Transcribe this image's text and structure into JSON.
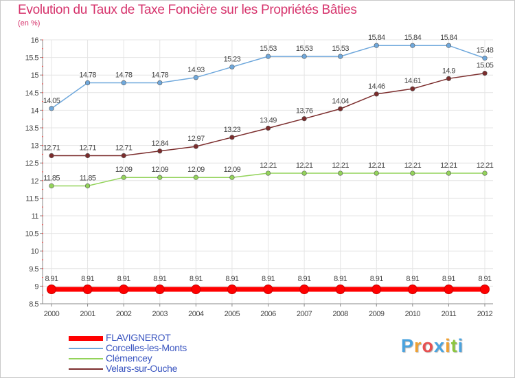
{
  "title": "Evolution du Taux de Taxe Foncière sur les Propriétés Bâties",
  "unit": "(en %)",
  "brand": {
    "text": "Proxiti",
    "colors": [
      "#4aa3df",
      "#f0a030",
      "#e85050",
      "#4aa3df",
      "#f0a030",
      "#8cc63f",
      "#4aa3df"
    ]
  },
  "chart_data": {
    "type": "line",
    "title": "Evolution du Taux de Taxe Foncière sur les Propriétés Bâties",
    "ylabel": "(en %)",
    "xlabel": "",
    "ylim": [
      8.5,
      16
    ],
    "yticks": [
      "8.5",
      "9",
      "9.5",
      "10",
      "10.5",
      "11",
      "11.5",
      "12",
      "12.5",
      "13",
      "13.5",
      "14",
      "14.5",
      "15",
      "15.5",
      "16"
    ],
    "categories": [
      "2000",
      "2001",
      "2002",
      "2003",
      "2004",
      "2005",
      "2006",
      "2007",
      "2008",
      "2009",
      "2010",
      "2011",
      "2012"
    ],
    "legend_position": "bottom-left",
    "series": [
      {
        "name": "FLAVIGNEROT",
        "color": "#ff0000",
        "values": [
          8.91,
          8.91,
          8.91,
          8.91,
          8.91,
          8.91,
          8.91,
          8.91,
          8.91,
          8.91,
          8.91,
          8.91,
          8.91
        ],
        "labels": [
          "8.91",
          "8.91",
          "8.91",
          "8.91",
          "8.91",
          "8.91",
          "8.91",
          "8.91",
          "8.91",
          "8.91",
          "8.91",
          "8.91",
          "8.91"
        ]
      },
      {
        "name": "Corcelles-les-Monts",
        "color": "#6fa8dc",
        "values": [
          14.05,
          14.78,
          14.78,
          14.78,
          14.93,
          15.23,
          15.53,
          15.53,
          15.53,
          15.84,
          15.84,
          15.84,
          15.48
        ],
        "labels": [
          "14.05",
          "14.78",
          "14.78",
          "14.78",
          "14.93",
          "15.23",
          "15.53",
          "15.53",
          "15.53",
          "15.84",
          "15.84",
          "15.84",
          "15.48"
        ]
      },
      {
        "name": "Clémencey",
        "color": "#93d35a",
        "values": [
          11.85,
          11.85,
          12.09,
          12.09,
          12.09,
          12.09,
          12.21,
          12.21,
          12.21,
          12.21,
          12.21,
          12.21,
          12.21
        ],
        "labels": [
          "11.85",
          "11.85",
          "12.09",
          "12.09",
          "12.09",
          "12.09",
          "12.21",
          "12.21",
          "12.21",
          "12.21",
          "12.21",
          "12.21",
          "12.21"
        ]
      },
      {
        "name": "Velars-sur-Ouche",
        "color": "#7b2c2c",
        "values": [
          12.71,
          12.71,
          12.71,
          12.84,
          12.97,
          13.23,
          13.49,
          13.76,
          14.04,
          14.46,
          14.61,
          14.9,
          15.05
        ],
        "labels": [
          "12.71",
          "12.71",
          "12.71",
          "12.84",
          "12.97",
          "13.23",
          "13.49",
          "13.76",
          "14.04",
          "14.46",
          "14.61",
          "14.9",
          "15.05"
        ]
      }
    ]
  }
}
